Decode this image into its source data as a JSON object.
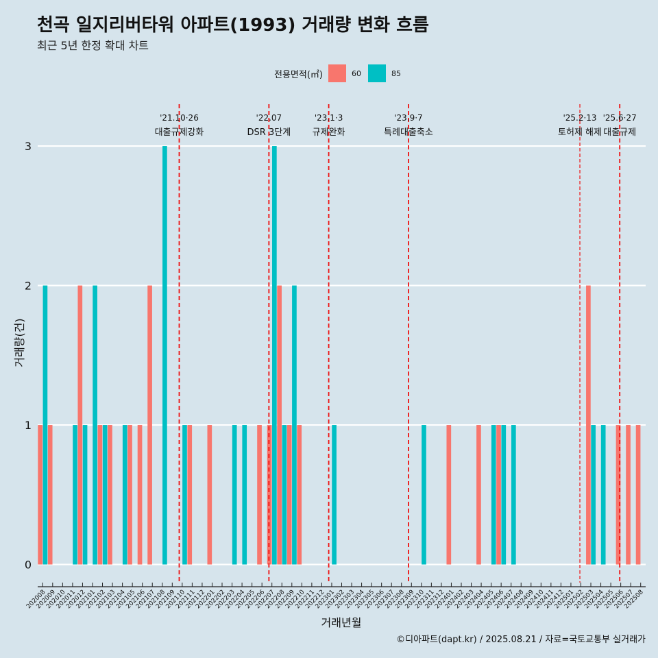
{
  "page": {
    "title": "천곡 일지리버타워 아파트(1993) 거래량 변화 흐름",
    "subtitle": "최근 5년 한정 확대 차트",
    "footer": "©디아파트(dapt.kr) / 2025.08.21 / 자료=국토교통부 실거래가"
  },
  "legend": {
    "title": "전용면적(㎡)",
    "items": [
      {
        "label": "60",
        "color": "#f8766d"
      },
      {
        "label": "85",
        "color": "#00bfc4"
      }
    ]
  },
  "chart_data": {
    "type": "bar",
    "xlabel": "거래년월",
    "ylabel": "거래량(건)",
    "ylim": [
      -0.13,
      3.3
    ],
    "yticks": [
      0,
      1,
      2,
      3
    ],
    "categories": [
      "202008",
      "202009",
      "202010",
      "202011",
      "202012",
      "202101",
      "202102",
      "202103",
      "202104",
      "202105",
      "202106",
      "202107",
      "202108",
      "202109",
      "202110",
      "202111",
      "202112",
      "202201",
      "202202",
      "202203",
      "202204",
      "202205",
      "202206",
      "202207",
      "202208",
      "202209",
      "202210",
      "202211",
      "202212",
      "202301",
      "202302",
      "202303",
      "202304",
      "202305",
      "202306",
      "202307",
      "202308",
      "202309",
      "202310",
      "202311",
      "202312",
      "202401",
      "202402",
      "202403",
      "202404",
      "202405",
      "202406",
      "202407",
      "202408",
      "202409",
      "202410",
      "202411",
      "202412",
      "202501",
      "202502",
      "202503",
      "202504",
      "202505",
      "202506",
      "202507",
      "202508"
    ],
    "series": [
      {
        "name": "60",
        "color": "#f8766d",
        "values": [
          1,
          1,
          0,
          0,
          2,
          0,
          1,
          1,
          0,
          1,
          1,
          2,
          0,
          0,
          0,
          1,
          0,
          1,
          0,
          0,
          0,
          0,
          1,
          1,
          2,
          1,
          1,
          0,
          0,
          0,
          0,
          0,
          0,
          0,
          0,
          0,
          0,
          0,
          0,
          0,
          0,
          1,
          0,
          0,
          1,
          0,
          1,
          0,
          0,
          0,
          0,
          0,
          0,
          0,
          0,
          2,
          0,
          0,
          1,
          1,
          1
        ]
      },
      {
        "name": "85",
        "color": "#00bfc4",
        "values": [
          2,
          0,
          0,
          1,
          1,
          2,
          1,
          0,
          1,
          0,
          0,
          0,
          3,
          0,
          1,
          0,
          0,
          0,
          0,
          1,
          1,
          0,
          0,
          3,
          1,
          2,
          0,
          0,
          0,
          1,
          0,
          0,
          0,
          0,
          0,
          0,
          0,
          0,
          1,
          0,
          0,
          0,
          0,
          0,
          0,
          1,
          1,
          1,
          0,
          0,
          0,
          0,
          0,
          0,
          0,
          1,
          1,
          0,
          0,
          0,
          0
        ]
      }
    ],
    "events": [
      {
        "date": "'21.10·26",
        "desc": "대출규제강화",
        "x": 14.2,
        "dash": "6,4",
        "width": 1.8
      },
      {
        "date": "'22.07",
        "desc": "DSR 3단계",
        "x": 23.2,
        "dash": "6,4",
        "width": 1.8
      },
      {
        "date": "'23.1·3",
        "desc": "규제완화",
        "x": 29.2,
        "dash": "6,4",
        "width": 1.8
      },
      {
        "date": "'23.9·7",
        "desc": "특례대출축소",
        "x": 37.2,
        "dash": "6,4",
        "width": 1.8
      },
      {
        "date": "'25.2·13",
        "desc": "토허제 해제",
        "x": 54.4,
        "dash": "5,3",
        "width": 1.2
      },
      {
        "date": "'25.6·27",
        "desc": "대출규제",
        "x": 58.4,
        "dash": "6,4",
        "width": 1.8
      }
    ]
  }
}
